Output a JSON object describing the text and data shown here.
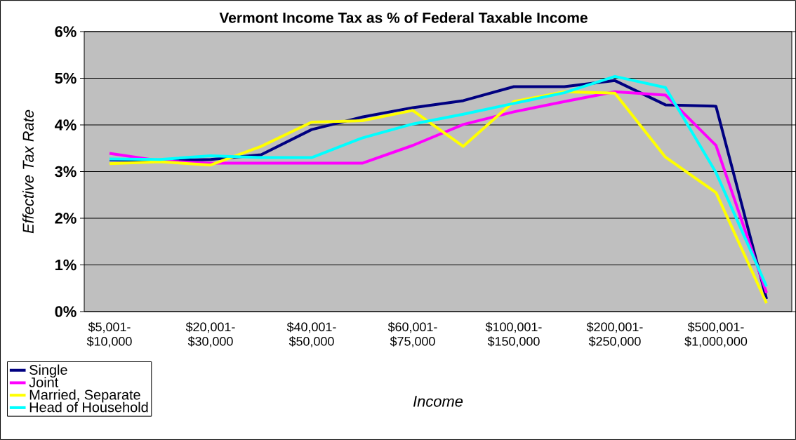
{
  "chart_data": {
    "type": "line",
    "title": "Vermont Income Tax as % of Federal Taxable Income",
    "xlabel": "Income",
    "ylabel": "Effective Tax Rate",
    "categories": [
      "$5,001-$10,000",
      null,
      "$20,001-$30,000",
      null,
      "$40,001-$50,000",
      null,
      "$60,001-$75,000",
      null,
      "$100,001-$150,000",
      null,
      "$200,001-$250,000",
      null,
      "$500,001-$1,000,000",
      null
    ],
    "series": [
      {
        "name": "Single",
        "color": "#000080",
        "values": [
          3.25,
          3.23,
          3.26,
          3.36,
          3.9,
          4.17,
          4.37,
          4.52,
          4.82,
          4.82,
          4.95,
          4.43,
          4.4,
          0.27
        ]
      },
      {
        "name": "Joint",
        "color": "#ff00ff",
        "values": [
          3.39,
          3.23,
          3.18,
          3.18,
          3.18,
          3.18,
          3.56,
          4.01,
          4.28,
          4.5,
          4.71,
          4.64,
          3.56,
          0.4
        ]
      },
      {
        "name": "Married, Separate",
        "color": "#ffff00",
        "values": [
          3.17,
          3.21,
          3.14,
          3.54,
          4.06,
          4.09,
          4.31,
          3.54,
          4.5,
          4.71,
          4.68,
          3.31,
          2.55,
          0.18
        ]
      },
      {
        "name": "Head of Household",
        "color": "#00ffff",
        "values": [
          3.27,
          3.26,
          3.34,
          3.3,
          3.3,
          3.72,
          4.02,
          4.23,
          4.46,
          4.69,
          5.04,
          4.8,
          2.98,
          0.54
        ]
      }
    ],
    "ylim": [
      0,
      6
    ],
    "yticks": [
      {
        "value": 0,
        "label": "0%"
      },
      {
        "value": 1,
        "label": "1%"
      },
      {
        "value": 2,
        "label": "2%"
      },
      {
        "value": 3,
        "label": "3%"
      },
      {
        "value": 4,
        "label": "4%"
      },
      {
        "value": 5,
        "label": "5%"
      },
      {
        "value": 6,
        "label": "6%"
      }
    ],
    "grid": "y",
    "legend": "bottom left",
    "marker": "none",
    "line_style": "solid"
  }
}
